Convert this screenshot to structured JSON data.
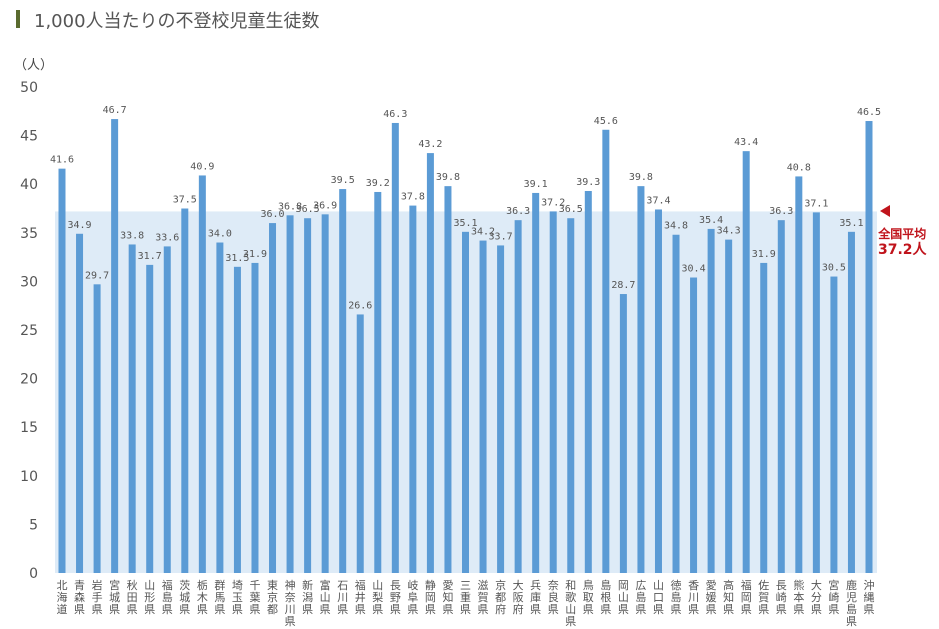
{
  "chart_data": {
    "type": "bar",
    "title": "1,000人当たりの不登校児童生徒数",
    "ylabel": "（人）",
    "ylim": [
      0,
      50
    ],
    "yticks": [
      0,
      5,
      10,
      15,
      20,
      25,
      30,
      35,
      40,
      45,
      50
    ],
    "categories": [
      "北海道",
      "青森県",
      "岩手県",
      "宮城県",
      "秋田県",
      "山形県",
      "福島県",
      "茨城県",
      "栃木県",
      "群馬県",
      "埼玉県",
      "千葉県",
      "東京都",
      "神奈川県",
      "新潟県",
      "富山県",
      "石川県",
      "福井県",
      "山梨県",
      "長野県",
      "岐阜県",
      "静岡県",
      "愛知県",
      "三重県",
      "滋賀県",
      "京都府",
      "大阪府",
      "兵庫県",
      "奈良県",
      "和歌山県",
      "鳥取県",
      "島根県",
      "岡山県",
      "広島県",
      "山口県",
      "徳島県",
      "香川県",
      "愛媛県",
      "高知県",
      "福岡県",
      "佐賀県",
      "長崎県",
      "熊本県",
      "大分県",
      "宮崎県",
      "鹿児島県",
      "沖縄県"
    ],
    "values": [
      41.6,
      34.9,
      29.7,
      46.7,
      33.8,
      31.7,
      33.6,
      37.5,
      40.9,
      34.0,
      31.5,
      31.9,
      36.0,
      36.8,
      36.5,
      36.9,
      39.5,
      26.6,
      39.2,
      46.3,
      37.8,
      43.2,
      39.8,
      35.1,
      34.2,
      33.7,
      36.3,
      39.1,
      37.2,
      36.5,
      39.3,
      45.6,
      28.7,
      39.8,
      37.4,
      34.8,
      30.4,
      35.4,
      34.3,
      43.4,
      31.9,
      36.3,
      40.8,
      37.1,
      30.5,
      35.1,
      46.5
    ],
    "average": {
      "label": "全国平均",
      "value_label": "37.2人",
      "value": 37.2
    },
    "colors": {
      "bar": "#5b9bd5",
      "band": "#deebf7",
      "avg": "#c0141c",
      "title_accent": "#5a6b2e"
    },
    "grid": false
  }
}
